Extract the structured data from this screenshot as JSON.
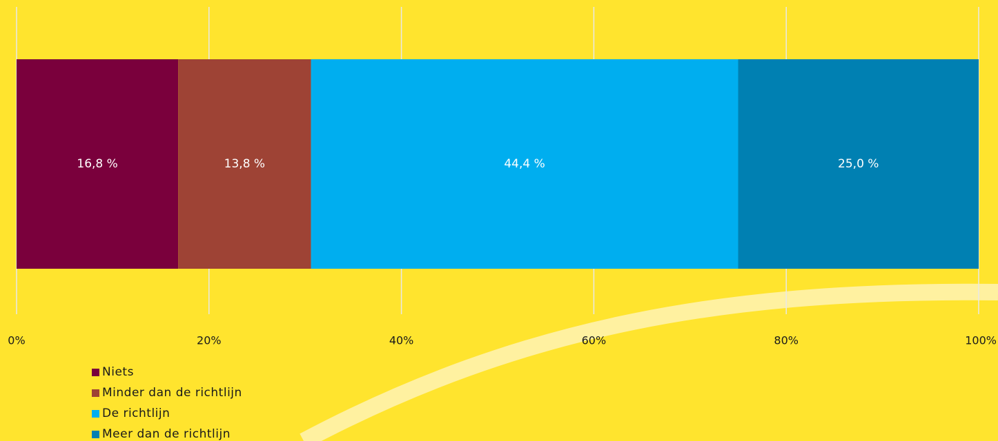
{
  "chart_data": {
    "type": "bar",
    "orientation": "horizontal",
    "stacked": true,
    "title": "",
    "xlabel": "",
    "ylabel": "",
    "xlim": [
      0,
      100
    ],
    "x_ticks": [
      0,
      20,
      40,
      60,
      80,
      100
    ],
    "x_tick_labels": [
      "0%",
      "20%",
      "40%",
      "60%",
      "80%",
      "100%"
    ],
    "grid": "vertical",
    "legend_position": "bottom-left",
    "series": [
      {
        "name": "Niets",
        "value": 16.8,
        "label": "16,8 %",
        "color": "#7A003C"
      },
      {
        "name": "Minder dan de richtlijn",
        "value": 13.8,
        "label": "13,8 %",
        "color": "#9E4335"
      },
      {
        "name": "De richtlijn",
        "value": 44.4,
        "label": "44,4 %",
        "color": "#00AEEF"
      },
      {
        "name": "Meer dan de richtlijn",
        "value": 25.0,
        "label": "25,0 %",
        "color": "#0080B2"
      }
    ]
  },
  "colors": {
    "background": "#FFE42E",
    "gridline": "#E8E8E8",
    "decorative_swoosh": "#FFF1A0"
  }
}
